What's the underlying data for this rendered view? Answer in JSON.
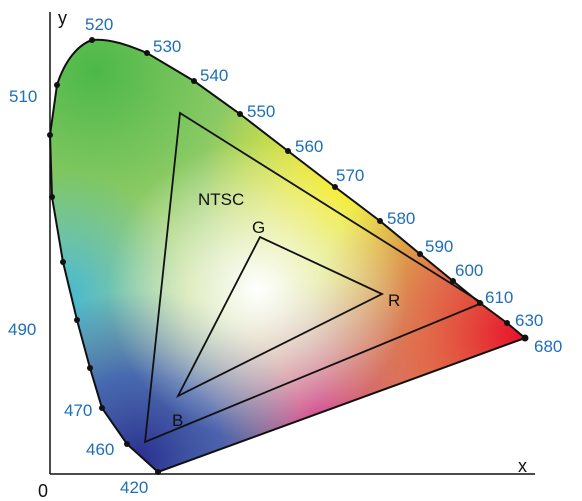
{
  "axes": {
    "x_label": "x",
    "y_label": "y",
    "origin_label": "0"
  },
  "inner_triangle": {
    "label": "NTSC"
  },
  "primaries": {
    "r": "R",
    "g": "G",
    "b": "B"
  },
  "wavelengths": [
    {
      "value": "420"
    },
    {
      "value": "460"
    },
    {
      "value": "470"
    },
    {
      "value": "490"
    },
    {
      "value": "510"
    },
    {
      "value": "520"
    },
    {
      "value": "530"
    },
    {
      "value": "540"
    },
    {
      "value": "550"
    },
    {
      "value": "560"
    },
    {
      "value": "570"
    },
    {
      "value": "580"
    },
    {
      "value": "590"
    },
    {
      "value": "600"
    },
    {
      "value": "610"
    },
    {
      "value": "630"
    },
    {
      "value": "680"
    }
  ],
  "colors": {
    "label_blue": "#1f6fb5",
    "outline": "#111111"
  }
}
